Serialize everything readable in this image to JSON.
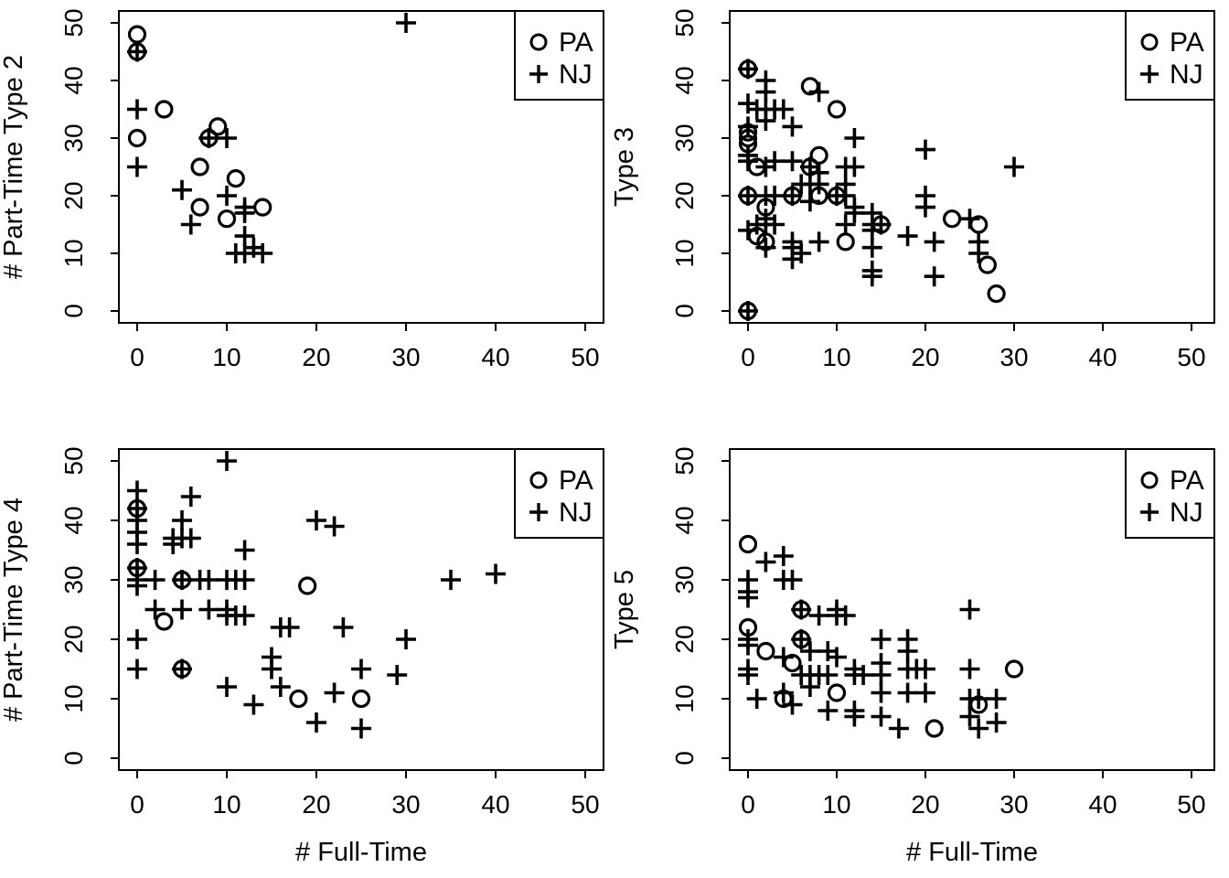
{
  "figure": {
    "background": "#ffffff",
    "foreground": "#000000",
    "grid": "off",
    "layout": "2x2 scatter panel matrix"
  },
  "legend": {
    "position": "top-right",
    "entries": [
      {
        "label": "PA",
        "marker": "circle"
      },
      {
        "label": "NJ",
        "marker": "plus"
      }
    ]
  },
  "chart_data": [
    {
      "type": "scatter",
      "panel": "top-left",
      "ylabel": "# Part-Time Type 2",
      "xlabel": "",
      "xlim": [
        0,
        50
      ],
      "ylim": [
        0,
        50
      ],
      "xticks": [
        0,
        10,
        20,
        30,
        40,
        50
      ],
      "yticks": [
        0,
        10,
        20,
        30,
        40,
        50
      ],
      "legend_labels": [
        "PA",
        "NJ"
      ],
      "series": [
        {
          "name": "PA",
          "marker": "circle",
          "points": [
            [
              0,
              48
            ],
            [
              0,
              45
            ],
            [
              3,
              35
            ],
            [
              0,
              30
            ],
            [
              9,
              32
            ],
            [
              8,
              30
            ],
            [
              7,
              25
            ],
            [
              11,
              23
            ],
            [
              7,
              18
            ],
            [
              14,
              18
            ],
            [
              10,
              16
            ]
          ]
        },
        {
          "name": "NJ",
          "marker": "plus",
          "points": [
            [
              0,
              45
            ],
            [
              0,
              35
            ],
            [
              0,
              25
            ],
            [
              8,
              30
            ],
            [
              10,
              30
            ],
            [
              5,
              21
            ],
            [
              10,
              20
            ],
            [
              6,
              15
            ],
            [
              12,
              18
            ],
            [
              12,
              17
            ],
            [
              12,
              13
            ],
            [
              11,
              10
            ],
            [
              12,
              10
            ],
            [
              13,
              11
            ],
            [
              14,
              10
            ],
            [
              30,
              50
            ]
          ]
        }
      ]
    },
    {
      "type": "scatter",
      "panel": "top-right",
      "ylabel": "Type 3",
      "xlabel": "",
      "xlim": [
        0,
        50
      ],
      "ylim": [
        0,
        50
      ],
      "xticks": [
        0,
        10,
        20,
        30,
        40,
        50
      ],
      "yticks": [
        0,
        10,
        20,
        30,
        40,
        50
      ],
      "legend_labels": [
        "PA",
        "NJ"
      ],
      "series": [
        {
          "name": "PA",
          "marker": "circle",
          "points": [
            [
              0,
              42
            ],
            [
              7,
              39
            ],
            [
              10,
              35
            ],
            [
              0,
              31
            ],
            [
              0,
              30
            ],
            [
              0,
              29
            ],
            [
              1,
              25
            ],
            [
              8,
              27
            ],
            [
              7,
              25
            ],
            [
              0,
              20
            ],
            [
              2,
              18
            ],
            [
              5,
              20
            ],
            [
              8,
              20
            ],
            [
              10,
              20
            ],
            [
              15,
              15
            ],
            [
              1,
              13
            ],
            [
              2,
              12
            ],
            [
              11,
              12
            ],
            [
              23,
              16
            ],
            [
              26,
              15
            ],
            [
              27,
              8
            ],
            [
              28,
              3
            ],
            [
              0,
              0
            ]
          ]
        },
        {
          "name": "NJ",
          "marker": "plus",
          "points": [
            [
              0,
              42
            ],
            [
              2,
              40
            ],
            [
              2,
              38
            ],
            [
              8,
              38
            ],
            [
              0,
              36
            ],
            [
              1,
              35
            ],
            [
              2,
              35
            ],
            [
              3,
              35
            ],
            [
              4,
              35
            ],
            [
              2,
              33
            ],
            [
              5,
              32
            ],
            [
              12,
              30
            ],
            [
              20,
              28
            ],
            [
              30,
              25
            ],
            [
              11,
              25
            ],
            [
              12,
              25
            ],
            [
              5,
              26
            ],
            [
              0,
              32
            ],
            [
              0,
              27
            ],
            [
              0,
              26
            ],
            [
              3,
              26
            ],
            [
              7,
              25
            ],
            [
              2,
              25
            ],
            [
              8,
              24
            ],
            [
              0,
              20
            ],
            [
              2,
              20
            ],
            [
              3,
              20
            ],
            [
              5,
              20
            ],
            [
              7,
              19
            ],
            [
              10,
              20
            ],
            [
              11,
              20
            ],
            [
              6,
              22
            ],
            [
              7,
              22
            ],
            [
              8,
              22
            ],
            [
              11,
              22
            ],
            [
              12,
              18
            ],
            [
              12,
              17
            ],
            [
              14,
              17
            ],
            [
              20,
              20
            ],
            [
              20,
              18
            ],
            [
              1,
              15
            ],
            [
              2,
              16
            ],
            [
              2,
              15
            ],
            [
              3,
              15
            ],
            [
              11,
              15
            ],
            [
              14,
              15
            ],
            [
              14,
              14
            ],
            [
              15,
              15
            ],
            [
              25,
              16
            ],
            [
              0,
              14
            ],
            [
              2,
              11
            ],
            [
              5,
              12
            ],
            [
              5,
              11
            ],
            [
              8,
              12
            ],
            [
              5,
              9
            ],
            [
              6,
              10
            ],
            [
              14,
              11
            ],
            [
              14,
              7
            ],
            [
              14,
              6
            ],
            [
              18,
              13
            ],
            [
              21,
              12
            ],
            [
              21,
              6
            ],
            [
              26,
              12
            ],
            [
              26,
              10
            ],
            [
              0,
              0
            ]
          ]
        }
      ]
    },
    {
      "type": "scatter",
      "panel": "bottom-left",
      "ylabel": "# Part-Time Type 4",
      "xlabel": "# Full-Time",
      "xlim": [
        0,
        50
      ],
      "ylim": [
        0,
        50
      ],
      "xticks": [
        0,
        10,
        20,
        30,
        40,
        50
      ],
      "yticks": [
        0,
        10,
        20,
        30,
        40,
        50
      ],
      "legend_labels": [
        "PA",
        "NJ"
      ],
      "series": [
        {
          "name": "PA",
          "marker": "circle",
          "points": [
            [
              0,
              42
            ],
            [
              0,
              32
            ],
            [
              5,
              30
            ],
            [
              3,
              23
            ],
            [
              19,
              29
            ],
            [
              5,
              15
            ],
            [
              18,
              10
            ],
            [
              25,
              10
            ]
          ]
        },
        {
          "name": "NJ",
          "marker": "plus",
          "points": [
            [
              0,
              45
            ],
            [
              0,
              42
            ],
            [
              0,
              40
            ],
            [
              0,
              38
            ],
            [
              0,
              36
            ],
            [
              0,
              32
            ],
            [
              0,
              30
            ],
            [
              0,
              29
            ],
            [
              0,
              20
            ],
            [
              0,
              15
            ],
            [
              6,
              44
            ],
            [
              5,
              40
            ],
            [
              4,
              37
            ],
            [
              5,
              37
            ],
            [
              6,
              37
            ],
            [
              4,
              36
            ],
            [
              10,
              50
            ],
            [
              12,
              35
            ],
            [
              2,
              30
            ],
            [
              5,
              30
            ],
            [
              7,
              30
            ],
            [
              8,
              30
            ],
            [
              10,
              30
            ],
            [
              11,
              30
            ],
            [
              12,
              30
            ],
            [
              2,
              25
            ],
            [
              5,
              25
            ],
            [
              8,
              25
            ],
            [
              10,
              25
            ],
            [
              10,
              24
            ],
            [
              11,
              24
            ],
            [
              12,
              24
            ],
            [
              16,
              22
            ],
            [
              17,
              22
            ],
            [
              23,
              22
            ],
            [
              15,
              17
            ],
            [
              15,
              15
            ],
            [
              5,
              15
            ],
            [
              10,
              12
            ],
            [
              13,
              9
            ],
            [
              16,
              12
            ],
            [
              20,
              40
            ],
            [
              22,
              39
            ],
            [
              22,
              11
            ],
            [
              25,
              15
            ],
            [
              25,
              5
            ],
            [
              20,
              6
            ],
            [
              29,
              14
            ],
            [
              30,
              20
            ],
            [
              35,
              30
            ],
            [
              40,
              31
            ]
          ]
        }
      ]
    },
    {
      "type": "scatter",
      "panel": "bottom-right",
      "ylabel": "Type 5",
      "xlabel": "# Full-Time",
      "xlim": [
        0,
        50
      ],
      "ylim": [
        0,
        50
      ],
      "xticks": [
        0,
        10,
        20,
        30,
        40,
        50
      ],
      "yticks": [
        0,
        10,
        20,
        30,
        40,
        50
      ],
      "legend_labels": [
        "PA",
        "NJ"
      ],
      "series": [
        {
          "name": "PA",
          "marker": "circle",
          "points": [
            [
              0,
              36
            ],
            [
              0,
              22
            ],
            [
              2,
              18
            ],
            [
              5,
              16
            ],
            [
              6,
              25
            ],
            [
              6,
              20
            ],
            [
              4,
              10
            ],
            [
              10,
              11
            ],
            [
              21,
              5
            ],
            [
              26,
              9
            ],
            [
              30,
              15
            ]
          ]
        },
        {
          "name": "NJ",
          "marker": "plus",
          "points": [
            [
              2,
              33
            ],
            [
              4,
              34
            ],
            [
              0,
              30
            ],
            [
              0,
              28
            ],
            [
              0,
              27
            ],
            [
              4,
              30
            ],
            [
              5,
              30
            ],
            [
              6,
              25
            ],
            [
              8,
              24
            ],
            [
              10,
              25
            ],
            [
              10,
              24
            ],
            [
              11,
              24
            ],
            [
              25,
              25
            ],
            [
              0,
              20
            ],
            [
              0,
              19
            ],
            [
              6,
              20
            ],
            [
              7,
              18
            ],
            [
              4,
              17
            ],
            [
              9,
              18
            ],
            [
              10,
              17
            ],
            [
              0,
              15
            ],
            [
              0,
              14
            ],
            [
              1,
              10
            ],
            [
              4,
              11
            ],
            [
              5,
              9
            ],
            [
              6,
              14
            ],
            [
              7,
              14
            ],
            [
              8,
              14
            ],
            [
              9,
              14
            ],
            [
              7,
              12
            ],
            [
              12,
              15
            ],
            [
              12,
              14
            ],
            [
              13,
              14
            ],
            [
              9,
              8
            ],
            [
              12,
              8
            ],
            [
              12,
              7
            ],
            [
              15,
              20
            ],
            [
              15,
              16
            ],
            [
              15,
              14
            ],
            [
              15,
              11
            ],
            [
              15,
              7
            ],
            [
              17,
              5
            ],
            [
              18,
              20
            ],
            [
              18,
              18
            ],
            [
              18,
              15
            ],
            [
              19,
              15
            ],
            [
              20,
              15
            ],
            [
              18,
              11
            ],
            [
              20,
              11
            ],
            [
              25,
              15
            ],
            [
              25,
              10
            ],
            [
              26,
              10
            ],
            [
              28,
              10
            ],
            [
              25,
              7
            ],
            [
              26,
              5
            ],
            [
              28,
              6
            ]
          ]
        }
      ]
    }
  ]
}
